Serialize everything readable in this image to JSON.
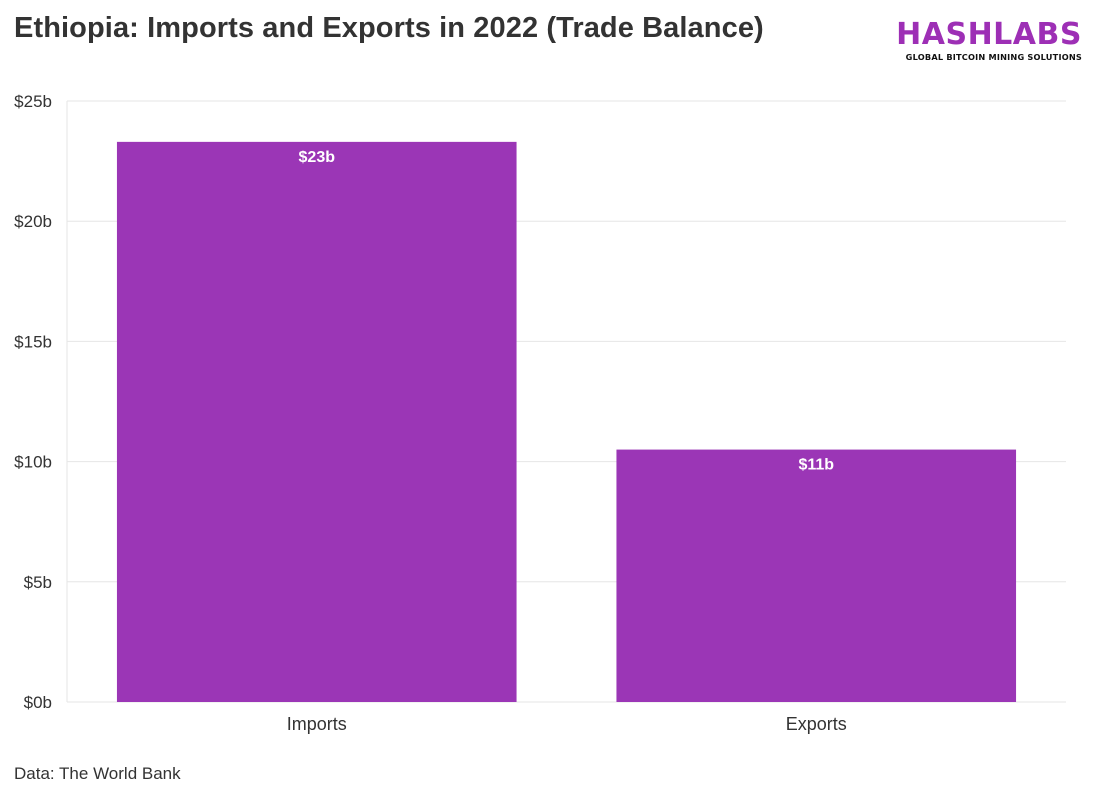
{
  "header": {
    "title": "Ethiopia: Imports and Exports in 2022 (Trade Balance)"
  },
  "logo": {
    "word": "HASHLABS",
    "tagline": "GLOBAL BITCOIN MINING SOLUTIONS"
  },
  "footer": {
    "source": "Data: The World Bank"
  },
  "colors": {
    "bar": "#9b36b6",
    "grid": "#e6e6e6",
    "text": "#333333",
    "label": "#ffffff"
  },
  "chart_data": {
    "type": "bar",
    "categories": [
      "Imports",
      "Exports"
    ],
    "values": [
      23.3,
      10.5
    ],
    "data_labels": [
      "$23b",
      "$11b"
    ],
    "title": "Ethiopia: Imports and Exports in 2022 (Trade Balance)",
    "xlabel": "",
    "ylabel": "",
    "ylim": [
      0,
      25
    ],
    "y_ticks": [
      0,
      5,
      10,
      15,
      20,
      25
    ],
    "y_tick_labels": [
      "$0b",
      "$5b",
      "$10b",
      "$15b",
      "$20b",
      "$25b"
    ],
    "grid": true,
    "legend": "none"
  }
}
